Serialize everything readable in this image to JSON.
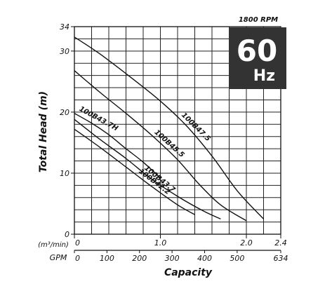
{
  "chart_data": {
    "type": "line",
    "header": "1800 RPM",
    "badge": {
      "frequency": "60",
      "unit": "Hz",
      "background": "#333333"
    },
    "ylabel": "Total Head (m)",
    "xlabel": "Capacity",
    "ylim": [
      0,
      34
    ],
    "y_ticks": [
      "34",
      "30",
      "20",
      "10",
      "0"
    ],
    "y_tick_values": [
      34,
      30,
      20,
      10,
      0
    ],
    "x_m3_label": "(m³/min)",
    "x_m3_ticks": [
      "0",
      "1.0",
      "2.0",
      "2.4"
    ],
    "x_m3_values": [
      0,
      1.0,
      2.0,
      2.4
    ],
    "x_gpm_label": "GPM",
    "x_gpm_ticks": [
      "0",
      "100",
      "200",
      "300",
      "400",
      "500",
      "634"
    ],
    "x_gpm_values": [
      0,
      100,
      200,
      300,
      400,
      500,
      634
    ],
    "grid": true,
    "grid_x_step": 0.2,
    "grid_y_step": 2,
    "series": [
      {
        "name": "100B47.5",
        "points": [
          [
            0,
            32.3
          ],
          [
            0.3,
            29.5
          ],
          [
            0.7,
            25.2
          ],
          [
            1.0,
            21.8
          ],
          [
            1.3,
            17.8
          ],
          [
            1.6,
            12.8
          ],
          [
            1.9,
            7.0
          ],
          [
            2.2,
            2.5
          ]
        ]
      },
      {
        "name": "100B45.5",
        "points": [
          [
            0,
            26.8
          ],
          [
            0.3,
            23.2
          ],
          [
            0.6,
            19.8
          ],
          [
            0.9,
            16.2
          ],
          [
            1.2,
            12.2
          ],
          [
            1.45,
            8.2
          ],
          [
            1.7,
            4.8
          ],
          [
            2.0,
            2.2
          ]
        ]
      },
      {
        "name": "100B43.7H",
        "points": [
          [
            0,
            19.8
          ],
          [
            0.2,
            18.2
          ],
          [
            0.4,
            16.3
          ],
          [
            0.6,
            14.0
          ],
          [
            0.8,
            11.8
          ],
          [
            1.0,
            9.2
          ]
        ]
      },
      {
        "name": "100B43.7",
        "points": [
          [
            0,
            18.8
          ],
          [
            0.3,
            15.5
          ],
          [
            0.6,
            12.4
          ],
          [
            0.9,
            9.0
          ],
          [
            1.2,
            6.2
          ],
          [
            1.5,
            3.8
          ],
          [
            1.7,
            2.5
          ]
        ]
      },
      {
        "name": "100B42.2",
        "points": [
          [
            0,
            17.2
          ],
          [
            0.3,
            14.2
          ],
          [
            0.6,
            11.0
          ],
          [
            0.9,
            7.8
          ],
          [
            1.2,
            4.8
          ],
          [
            1.4,
            3.2
          ]
        ]
      }
    ]
  }
}
